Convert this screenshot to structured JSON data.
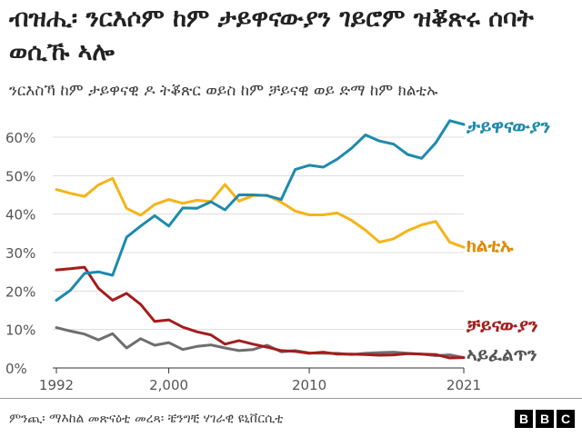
{
  "title": "ብዝሒ፡ ንርእሶም ከም ታይዋናውያን ገይሮም ዝቖጽሩ ሰባት ወሲኹ ኣሎ",
  "subtitle": "ንርእስኻ ከም ታይዋናዊ ዶ ትቖጽር ወይስ ከም ቻይናዊ ወይ ድማ ከም ክልቲኡ",
  "source": "ምንጪ፡ ማእከል መጽናዕቲ መረጻ፡ ቼንግቺ ሃገራዊ ዩኒቨርሲቲ",
  "logo_letters": [
    "B",
    "B",
    "C"
  ],
  "chart_data": {
    "type": "line",
    "x": [
      1992,
      1993,
      1994,
      1995,
      1996,
      1997,
      1998,
      1999,
      2000,
      2001,
      2002,
      2003,
      2004,
      2005,
      2006,
      2007,
      2008,
      2009,
      2010,
      2011,
      2012,
      2013,
      2014,
      2015,
      2016,
      2017,
      2018,
      2019,
      2020,
      2021
    ],
    "x_ticks": [
      "1992",
      "2,000",
      "2010",
      "2021"
    ],
    "x_tick_values": [
      1992,
      2000,
      2010,
      2021
    ],
    "y_ticks": [
      "0%",
      "10%",
      "20%",
      "30%",
      "40%",
      "50%",
      "60%"
    ],
    "y_tick_values": [
      0,
      10,
      20,
      30,
      40,
      50,
      60
    ],
    "ylim": [
      0,
      65
    ],
    "xlim": [
      1992,
      2021
    ],
    "grid": true,
    "legend": "end-of-line labels",
    "series": [
      {
        "name": "ታይዋናውያን",
        "color": "#1d8aad",
        "values": [
          17.6,
          20.2,
          24.6,
          25.0,
          24.1,
          34.0,
          36.9,
          39.6,
          36.9,
          41.6,
          41.5,
          43.2,
          41.1,
          45.0,
          45.0,
          44.8,
          43.8,
          51.6,
          52.7,
          52.2,
          54.3,
          57.1,
          60.6,
          59.0,
          58.2,
          55.5,
          54.5,
          58.5,
          64.3,
          63.3
        ]
      },
      {
        "name": "ክልቲኡ",
        "color": "#f5b417",
        "values": [
          46.4,
          45.4,
          44.6,
          47.6,
          49.3,
          41.5,
          39.7,
          42.5,
          43.8,
          42.8,
          43.6,
          43.3,
          47.7,
          43.4,
          44.8,
          44.9,
          43.1,
          40.8,
          39.8,
          39.8,
          40.3,
          38.4,
          35.8,
          32.7,
          33.6,
          35.7,
          37.2,
          38.1,
          32.7,
          31.4
        ]
      },
      {
        "name": "ቻይናውያን",
        "color": "#a51c1c",
        "values": [
          25.5,
          25.8,
          26.2,
          20.7,
          17.6,
          19.4,
          16.5,
          12.1,
          12.5,
          10.6,
          9.4,
          8.6,
          6.2,
          7.1,
          6.2,
          5.4,
          4.5,
          4.3,
          3.8,
          4.1,
          3.6,
          3.6,
          3.5,
          3.3,
          3.4,
          3.7,
          3.6,
          3.5,
          2.6,
          2.7
        ]
      },
      {
        "name": "ኣይፈልጥን",
        "color": "#6e6e6e",
        "values": [
          10.5,
          9.6,
          8.8,
          7.3,
          8.9,
          5.2,
          7.6,
          5.9,
          6.6,
          4.8,
          5.6,
          6.0,
          5.2,
          4.5,
          4.8,
          5.9,
          4.2,
          4.5,
          3.9,
          3.8,
          3.8,
          3.5,
          3.8,
          4.0,
          4.1,
          3.8,
          3.6,
          3.2,
          3.4,
          2.7
        ]
      }
    ]
  }
}
